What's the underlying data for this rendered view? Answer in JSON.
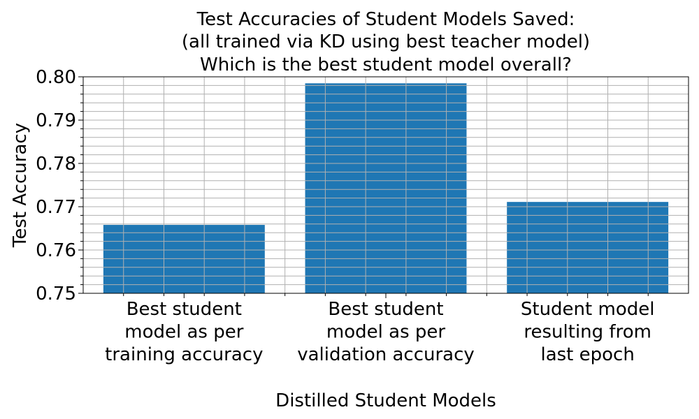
{
  "chart_data": {
    "type": "bar",
    "title": [
      "Test Accuracies of Student Models Saved:",
      "(all trained via KD using best teacher model)",
      "Which is the best student model overall?"
    ],
    "xlabel": "Distilled Student Models",
    "ylabel": "Test Accuracy",
    "categories": [
      [
        "Best student",
        "model as per",
        "training accuracy"
      ],
      [
        "Best student",
        "model as per",
        "validation accuracy"
      ],
      [
        "Student model",
        "resulting from",
        "last epoch"
      ]
    ],
    "values": [
      0.7658,
      0.7985,
      0.7711
    ],
    "ylim": [
      0.75,
      0.8
    ],
    "yticks": [
      "0.75",
      "0.76",
      "0.77",
      "0.78",
      "0.79",
      "0.80"
    ],
    "grid": true,
    "minor_ticks": true,
    "bar_color": "#1f77b4",
    "grid_color": "#b0b0b0"
  }
}
